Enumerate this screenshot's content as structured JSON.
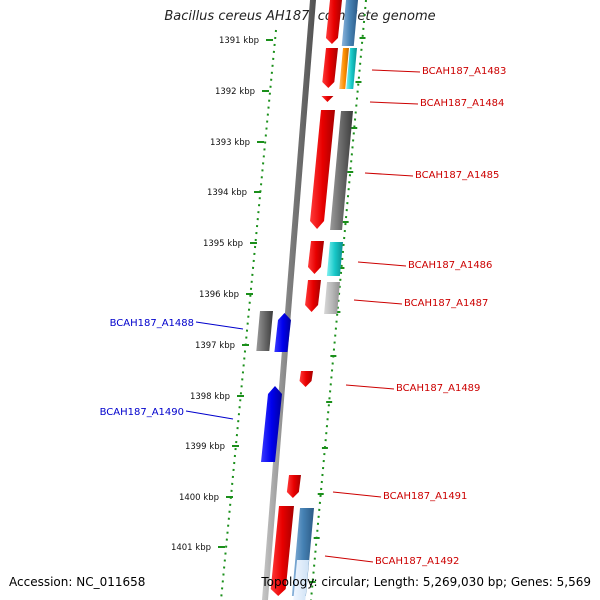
{
  "title": "Bacillus cereus AH187, complete genome",
  "accession_text": "Accession: NC_011658",
  "topology_text": "Topology: circular; Length: 5,269,030 bp; Genes: 5,569",
  "colors": {
    "forward_label": "#cc0000",
    "reverse_label": "#0000cc",
    "scale_tick": "#1a7f1a",
    "axis": "#808080"
  },
  "scale_ticks": [
    {
      "label": "1391 kbp"
    },
    {
      "label": "1392 kbp"
    },
    {
      "label": "1393 kbp"
    },
    {
      "label": "1394 kbp"
    },
    {
      "label": "1395 kbp"
    },
    {
      "label": "1396 kbp"
    },
    {
      "label": "1397 kbp"
    },
    {
      "label": "1398 kbp"
    },
    {
      "label": "1399 kbp"
    },
    {
      "label": "1400 kbp"
    },
    {
      "label": "1401 kbp"
    }
  ],
  "genes": [
    {
      "label": "BCAH187_A1483",
      "strand": "forward"
    },
    {
      "label": "BCAH187_A1484",
      "strand": "forward"
    },
    {
      "label": "BCAH187_A1485",
      "strand": "forward"
    },
    {
      "label": "BCAH187_A1486",
      "strand": "forward"
    },
    {
      "label": "BCAH187_A1487",
      "strand": "forward"
    },
    {
      "label": "BCAH187_A1488",
      "strand": "reverse"
    },
    {
      "label": "BCAH187_A1489",
      "strand": "forward"
    },
    {
      "label": "BCAH187_A1490",
      "strand": "reverse"
    },
    {
      "label": "BCAH187_A1491",
      "strand": "forward"
    },
    {
      "label": "BCAH187_A1492",
      "strand": "forward"
    }
  ]
}
